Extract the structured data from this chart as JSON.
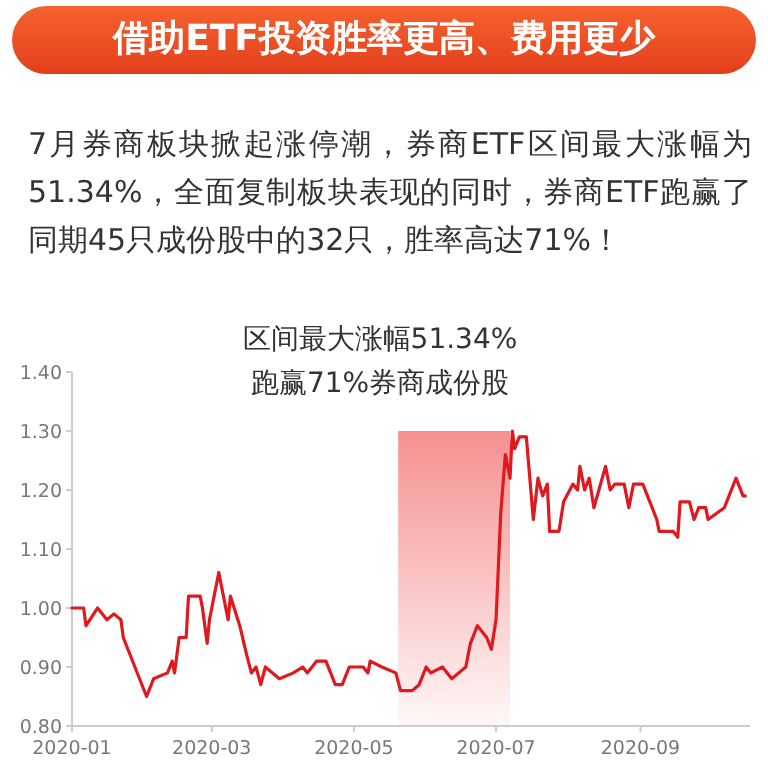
{
  "chart_data": {
    "type": "line",
    "title": "借助ETF投资胜率更高、费用更少",
    "subtitle": "7月券商板块掀起涨停潮，券商ETF区间最大涨幅为51.34%，全面复制板块表现的同时，券商ETF跑赢了同期45只成份股中的32只，胜率高达71%！",
    "annotations": [
      "区间最大涨幅51.34%",
      "跑赢71%券商成份股"
    ],
    "x": [
      "2020-01-01",
      "2020-01-06",
      "2020-01-07",
      "2020-01-12",
      "2020-01-16",
      "2020-01-19",
      "2020-01-22",
      "2020-01-23",
      "2020-02-02",
      "2020-02-05",
      "2020-02-11",
      "2020-02-13",
      "2020-02-14",
      "2020-02-16",
      "2020-02-19",
      "2020-02-20",
      "2020-02-25",
      "2020-02-26",
      "2020-02-28",
      "2020-02-29",
      "2020-03-04",
      "2020-03-08",
      "2020-03-09",
      "2020-03-13",
      "2020-03-16",
      "2020-03-18",
      "2020-03-20",
      "2020-03-22",
      "2020-03-24",
      "2020-03-30",
      "2020-04-05",
      "2020-04-09",
      "2020-04-11",
      "2020-04-15",
      "2020-04-19",
      "2020-04-23",
      "2020-04-26",
      "2020-04-29",
      "2020-05-05",
      "2020-05-07",
      "2020-05-08",
      "2020-05-13",
      "2020-05-19",
      "2020-05-21",
      "2020-05-26",
      "2020-05-29",
      "2020-06-01",
      "2020-06-03",
      "2020-06-08",
      "2020-06-12",
      "2020-06-15",
      "2020-06-18",
      "2020-06-20",
      "2020-06-23",
      "2020-06-27",
      "2020-06-29",
      "2020-07-01",
      "2020-07-03",
      "2020-07-05",
      "2020-07-07",
      "2020-07-08",
      "2020-07-09",
      "2020-07-11",
      "2020-07-14",
      "2020-07-17",
      "2020-07-19",
      "2020-07-21",
      "2020-07-23",
      "2020-07-24",
      "2020-07-28",
      "2020-07-30",
      "2020-08-03",
      "2020-08-05",
      "2020-08-06",
      "2020-08-08",
      "2020-08-10",
      "2020-08-12",
      "2020-08-17",
      "2020-08-19",
      "2020-08-21",
      "2020-08-25",
      "2020-08-27",
      "2020-08-29",
      "2020-09-02",
      "2020-09-06",
      "2020-09-08",
      "2020-09-09",
      "2020-09-15",
      "2020-09-17",
      "2020-09-18",
      "2020-09-22",
      "2020-09-24",
      "2020-09-26",
      "2020-09-29",
      "2020-09-30",
      "2020-10-07",
      "2020-10-12",
      "2020-10-15",
      "2020-10-16"
    ],
    "series": [
      {
        "color": "#e0191e",
        "values": [
          1.0,
          1.0,
          0.97,
          1.0,
          0.98,
          0.99,
          0.98,
          0.95,
          0.85,
          0.88,
          0.89,
          0.91,
          0.89,
          0.95,
          0.95,
          1.02,
          1.02,
          1.0,
          0.94,
          0.98,
          1.06,
          0.98,
          1.02,
          0.97,
          0.92,
          0.89,
          0.9,
          0.87,
          0.9,
          0.88,
          0.89,
          0.9,
          0.89,
          0.91,
          0.91,
          0.87,
          0.87,
          0.9,
          0.9,
          0.89,
          0.91,
          0.9,
          0.89,
          0.86,
          0.86,
          0.87,
          0.9,
          0.89,
          0.9,
          0.88,
          0.89,
          0.9,
          0.94,
          0.97,
          0.95,
          0.93,
          0.98,
          1.16,
          1.26,
          1.22,
          1.3,
          1.27,
          1.29,
          1.29,
          1.15,
          1.22,
          1.19,
          1.21,
          1.13,
          1.13,
          1.18,
          1.21,
          1.2,
          1.24,
          1.2,
          1.22,
          1.17,
          1.24,
          1.2,
          1.21,
          1.21,
          1.17,
          1.21,
          1.21,
          1.17,
          1.15,
          1.13,
          1.13,
          1.12,
          1.18,
          1.18,
          1.15,
          1.17,
          1.17,
          1.15,
          1.17,
          1.22,
          1.19,
          1.19
        ]
      }
    ],
    "bands": [
      {
        "axis": "x",
        "from": "2020-05-20",
        "to": "2020-07-07",
        "color": "#f26b6b"
      }
    ],
    "xlim": [
      "2020-01-01",
      "2020-10-18"
    ],
    "xticks": [
      "2020-01",
      "2020-03",
      "2020-05",
      "2020-07",
      "2020-09"
    ],
    "ylim": [
      0.8,
      1.4
    ],
    "yticks": [
      {
        "value": 0.8,
        "label": "0.80"
      },
      {
        "value": 0.9,
        "label": "0.90"
      },
      {
        "value": 1.0,
        "label": "1.00"
      },
      {
        "value": 1.1,
        "label": "1.10"
      },
      {
        "value": 1.2,
        "label": "1.20"
      },
      {
        "value": 1.3,
        "label": "1.30"
      },
      {
        "value": 1.4,
        "label": "1.40"
      }
    ],
    "line_style": "solid",
    "marker": "none",
    "grid": false
  }
}
